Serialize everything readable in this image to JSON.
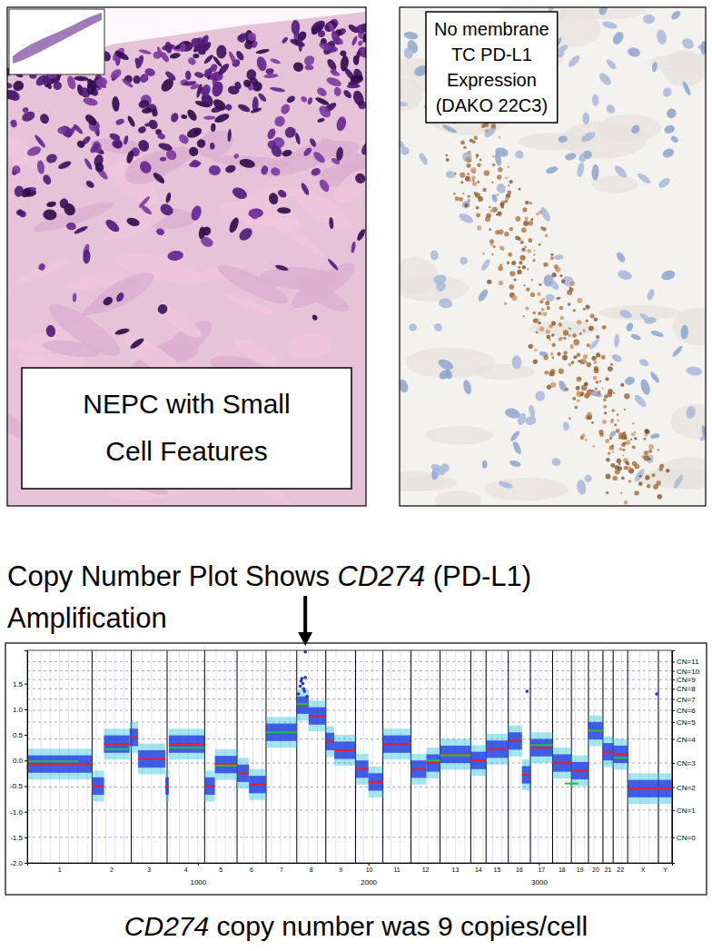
{
  "panels": [
    {
      "label_lines": [
        "NEPC with Small",
        "Cell Features"
      ]
    },
    {
      "label_lines": [
        "No membrane",
        "TC PD-L1",
        "Expression",
        "(DAKO 22C3)"
      ]
    }
  ],
  "heading": {
    "lines": [
      [
        {
          "text": "Copy Number Plot Shows "
        },
        {
          "text": "CD274",
          "italic": true
        },
        {
          "text": " (PD-L1)"
        }
      ],
      [
        {
          "text": "Amplification"
        }
      ]
    ]
  },
  "caption": [
    {
      "text": "CD274",
      "italic": true
    },
    {
      "text": " copy number was 9 copies/cell"
    }
  ],
  "chart_data": {
    "type": "scatter",
    "xlim": [
      0,
      3780
    ],
    "xticks": [
      1000,
      2000,
      3000
    ],
    "ylim": [
      -2.0,
      2.15
    ],
    "yticks": [
      {
        "value": -2,
        "label": "-2.0"
      },
      -1.5,
      {
        "value": -1,
        "label": "-1.0"
      },
      -0.5,
      {
        "value": 0,
        "label": "0.0"
      },
      0.5,
      {
        "value": 1,
        "label": "1.0"
      },
      1.5
    ],
    "y2lim": [
      -2.0,
      2.15
    ],
    "y2ticks": [
      {
        "value": -1.5,
        "label": "CN=0"
      },
      {
        "value": -0.97,
        "label": "CN=1"
      },
      {
        "value": -0.52,
        "label": "CN=2"
      },
      {
        "value": -0.05,
        "label": "CN=3"
      },
      {
        "value": 0.42,
        "label": "CN=4"
      },
      {
        "value": 0.75,
        "label": "CN=5"
      },
      {
        "value": 0.98,
        "label": "CN=6"
      },
      {
        "value": 1.2,
        "label": "CN=7"
      },
      {
        "value": 1.4,
        "label": "CN=8"
      },
      {
        "value": 1.58,
        "label": "CN=9"
      },
      {
        "value": 1.75,
        "label": "CN=10"
      },
      {
        "value": 1.93,
        "label": "CN=11"
      }
    ],
    "grid": true,
    "chromosomes": [
      "1",
      "2",
      "3",
      "4",
      "5",
      "6",
      "7",
      "8",
      "9",
      "10",
      "11",
      "12",
      "13",
      "14",
      "15",
      "16",
      "17",
      "18",
      "19",
      "20",
      "21",
      "22",
      "X",
      "Y"
    ],
    "chromosome_ends": [
      380,
      610,
      820,
      1040,
      1230,
      1400,
      1580,
      1750,
      1925,
      2085,
      2250,
      2420,
      2600,
      2690,
      2820,
      2950,
      3080,
      3190,
      3290,
      3375,
      3435,
      3520,
      3700,
      3780
    ],
    "series": [
      {
        "type": "segment",
        "color": "#e8202a",
        "start": [
          0,
          380,
          450,
          600,
          650,
          810,
          830,
          1040,
          1100,
          1230,
          1300,
          1400,
          1580,
          1650,
          1750,
          1800,
          1925,
          2000,
          2085,
          2250,
          2340,
          2420,
          2600,
          2690,
          2820,
          2900,
          2950,
          3080,
          3190,
          3290,
          3375,
          3435,
          3520
        ],
        "end": [
          380,
          450,
          600,
          650,
          810,
          830,
          1040,
          1100,
          1230,
          1300,
          1400,
          1580,
          1650,
          1750,
          1800,
          1925,
          2000,
          2085,
          2250,
          2340,
          2420,
          2600,
          2690,
          2820,
          2900,
          2950,
          3080,
          3190,
          3290,
          3375,
          3435,
          3520,
          3780
        ],
        "values": [
          -0.07,
          -0.5,
          0.32,
          0.45,
          0.03,
          -0.5,
          0.32,
          -0.5,
          -0.08,
          -0.25,
          -0.47,
          0.55,
          1.08,
          0.87,
          0.37,
          0.2,
          -0.17,
          -0.42,
          0.32,
          -0.17,
          -0.05,
          0.12,
          0.0,
          0.22,
          0.38,
          -0.28,
          0.25,
          -0.05,
          -0.2,
          0.58,
          0.17,
          0.12,
          -0.55
        ]
      },
      {
        "type": "segment",
        "color": "#22c33a",
        "start": [
          0,
          450,
          830,
          1100,
          1400,
          1580,
          2340,
          2420,
          2950,
          3150,
          3290,
          3435
        ],
        "end": [
          300,
          600,
          1040,
          1230,
          1580,
          1650,
          2420,
          2600,
          3080,
          3230,
          3375,
          3520
        ],
        "values": [
          -0.02,
          0.22,
          0.25,
          -0.1,
          0.55,
          1.1,
          0.0,
          0.1,
          0.3,
          -0.45,
          0.58,
          0.05
        ]
      },
      {
        "type": "scatter",
        "color": "#1f2fe0",
        "marker": "circle",
        "x": [
          1590,
          1600,
          1605,
          1610,
          1615,
          1620,
          1625,
          1630,
          1640,
          2930,
          3690,
          1630
        ],
        "values": [
          1.3,
          1.45,
          1.55,
          1.6,
          1.5,
          1.4,
          1.35,
          1.62,
          1.25,
          1.35,
          1.3,
          2.12
        ]
      }
    ]
  }
}
